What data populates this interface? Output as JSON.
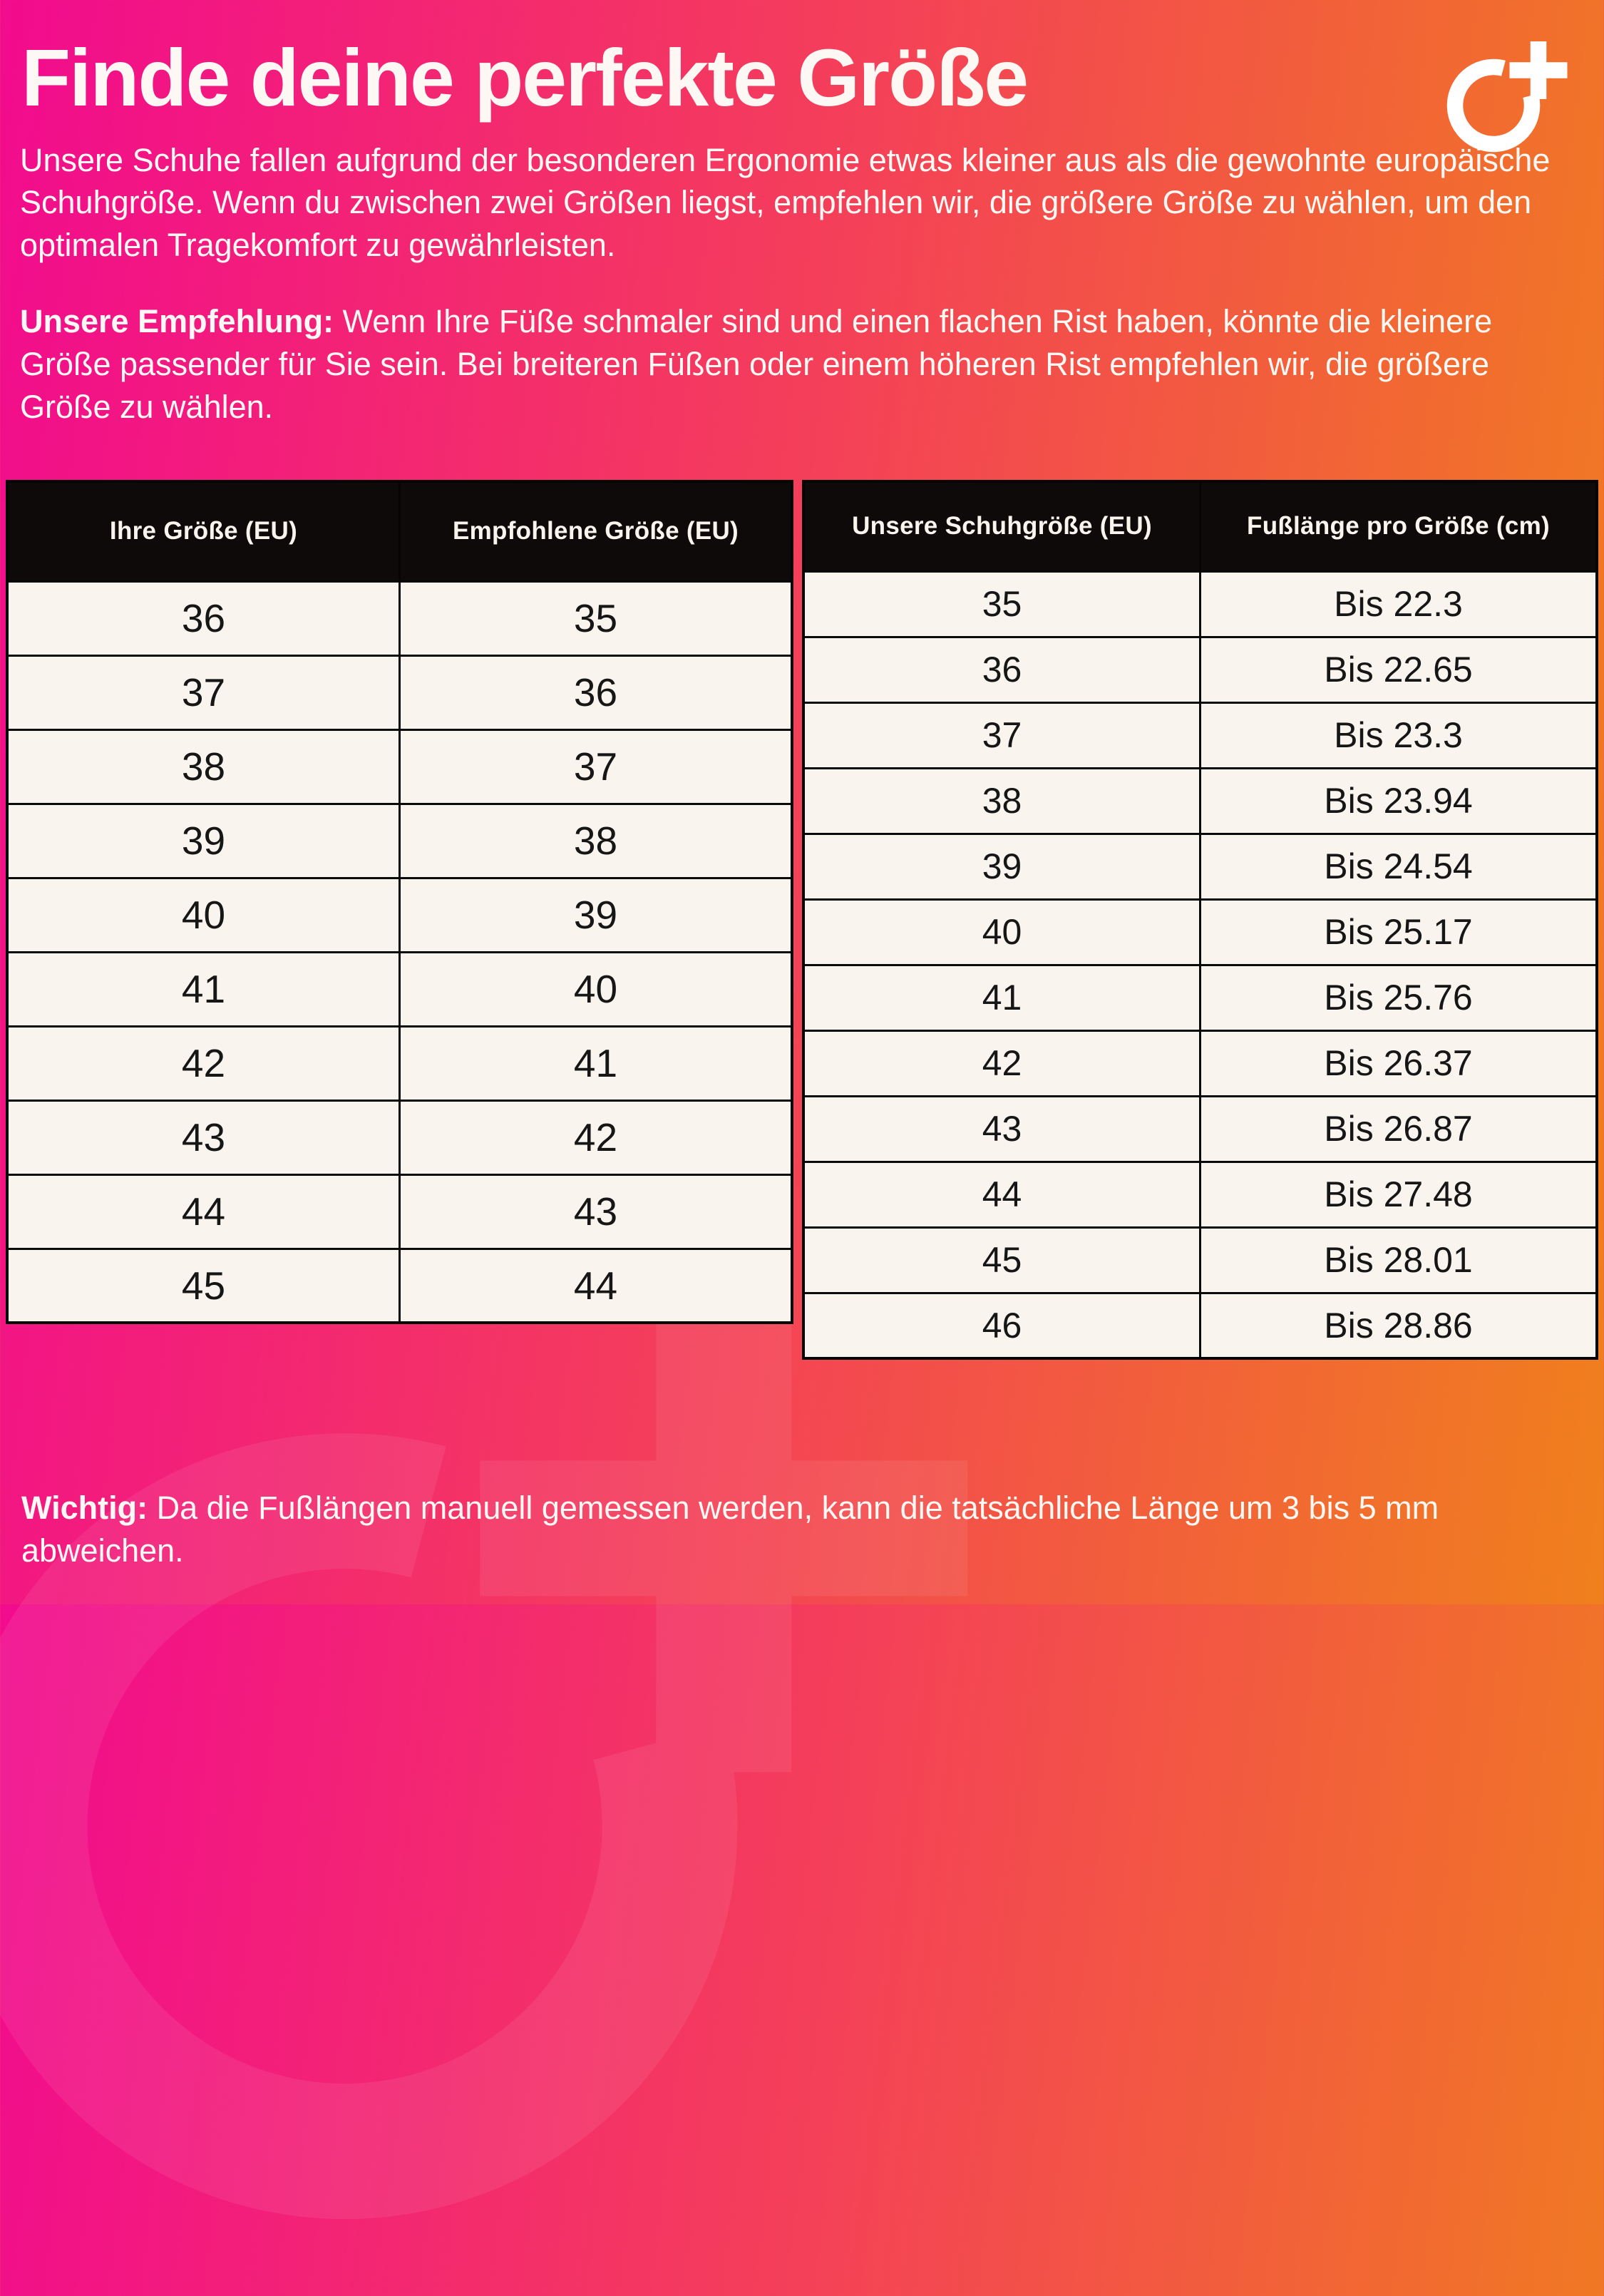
{
  "header": {
    "title": "Finde deine perfekte Größe",
    "intro": "Unsere Schuhe fallen aufgrund der besonderen Ergonomie etwas kleiner aus als die gewohnte europäische Schuhgröße. Wenn du zwischen zwei Größen liegst, empfehlen wir, die größere Größe zu wählen, um den optimalen Tragekomfort zu gewährleisten.",
    "recommendation_label": "Unsere Empfehlung:",
    "recommendation_text": " Wenn Ihre Füße schmaler sind und einen flachen Rist haben, könnte die kleinere Größe passender für Sie sein. Bei breiteren Füßen oder einem höheren Rist empfehlen wir, die größere Größe zu wählen."
  },
  "logo": {
    "icon": "circle-plus-brand-mark",
    "color": "#ffffff"
  },
  "size_table": {
    "headers": [
      "Ihre Größe (EU)",
      "Empfohlene Größe (EU)"
    ],
    "rows": [
      [
        "36",
        "35"
      ],
      [
        "37",
        "36"
      ],
      [
        "38",
        "37"
      ],
      [
        "39",
        "38"
      ],
      [
        "40",
        "39"
      ],
      [
        "41",
        "40"
      ],
      [
        "42",
        "41"
      ],
      [
        "43",
        "42"
      ],
      [
        "44",
        "43"
      ],
      [
        "45",
        "44"
      ]
    ]
  },
  "length_table": {
    "headers": [
      "Unsere Schuhgröße (EU)",
      "Fußlänge pro Größe (cm)"
    ],
    "rows": [
      [
        "35",
        "Bis 22.3"
      ],
      [
        "36",
        "Bis 22.65"
      ],
      [
        "37",
        "Bis 23.3"
      ],
      [
        "38",
        "Bis 23.94"
      ],
      [
        "39",
        "Bis 24.54"
      ],
      [
        "40",
        "Bis 25.17"
      ],
      [
        "41",
        "Bis 25.76"
      ],
      [
        "42",
        "Bis 26.37"
      ],
      [
        "43",
        "Bis 26.87"
      ],
      [
        "44",
        "Bis 27.48"
      ],
      [
        "45",
        "Bis 28.01"
      ],
      [
        "46",
        "Bis 28.86"
      ]
    ]
  },
  "footer": {
    "note_label": "Wichtig:",
    "note_text": " Da die Fußlängen manuell gemessen werden, kann die tatsächliche Länge um 3 bis 5 mm abweichen."
  },
  "colors": {
    "gradient_left": "#f20b8e",
    "gradient_mid": "#f43f59",
    "gradient_right": "#f0801c",
    "table_header_bg": "#0e0a09",
    "table_cell_bg": "#faf4ee",
    "table_border": "#050505",
    "text_light": "#fdf8f4",
    "text_dark": "#161616"
  }
}
